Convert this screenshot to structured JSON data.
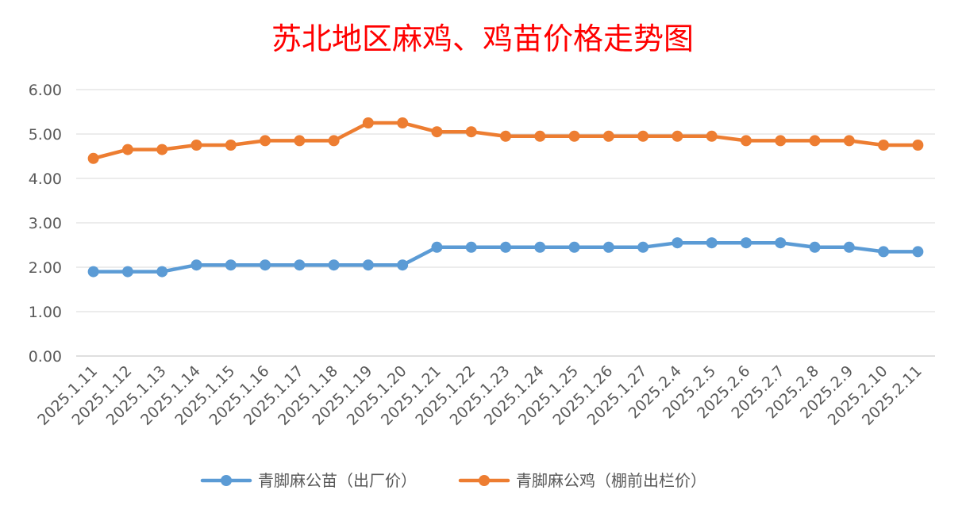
{
  "chart_data": {
    "type": "line",
    "title": "苏北地区麻鸡、鸡苗价格走势图",
    "xlabel": "",
    "ylabel": "",
    "ylim": [
      0,
      6
    ],
    "yticks": [
      "0.00",
      "1.00",
      "2.00",
      "3.00",
      "4.00",
      "5.00",
      "6.00"
    ],
    "grid": true,
    "legend_position": "bottom",
    "categories": [
      "2025.1.11",
      "2025.1.12",
      "2025.1.13",
      "2025.1.14",
      "2025.1.15",
      "2025.1.16",
      "2025.1.17",
      "2025.1.18",
      "2025.1.19",
      "2025.1.20",
      "2025.1.21",
      "2025.1.22",
      "2025.1.23",
      "2025.1.24",
      "2025.1.25",
      "2025.1.26",
      "2025.1.27",
      "2025.2.4",
      "2025.2.5",
      "2025.2.6",
      "2025.2.7",
      "2025.2.8",
      "2025.2.9",
      "2025.2.10",
      "2025.2.11"
    ],
    "series": [
      {
        "name": "青脚麻公苗（出厂价）",
        "color": "#5b9bd5",
        "values": [
          1.9,
          1.9,
          1.9,
          2.05,
          2.05,
          2.05,
          2.05,
          2.05,
          2.05,
          2.05,
          2.45,
          2.45,
          2.45,
          2.45,
          2.45,
          2.45,
          2.45,
          2.55,
          2.55,
          2.55,
          2.55,
          2.45,
          2.45,
          2.35,
          2.35
        ]
      },
      {
        "name": "青脚麻公鸡（棚前出栏价）",
        "color": "#ed7d31",
        "values": [
          4.45,
          4.65,
          4.65,
          4.75,
          4.75,
          4.85,
          4.85,
          4.85,
          5.25,
          5.25,
          5.05,
          5.05,
          4.95,
          4.95,
          4.95,
          4.95,
          4.95,
          4.95,
          4.95,
          4.85,
          4.85,
          4.85,
          4.85,
          4.75,
          4.75
        ]
      }
    ]
  }
}
